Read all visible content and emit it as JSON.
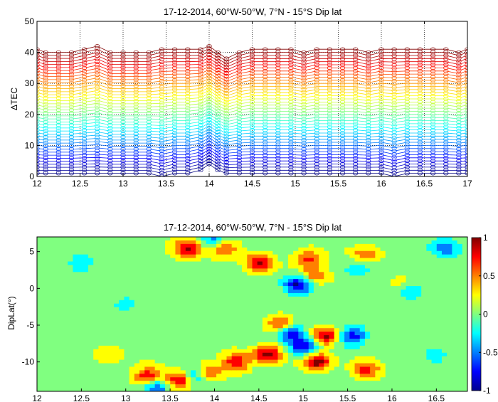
{
  "chart_data": [
    {
      "type": "line",
      "title": "17-12-2014, 60°W-50°W, 7°N - 15°S Dip lat",
      "xlabel": "",
      "ylabel": "ΔTEC",
      "xlim": [
        12,
        17
      ],
      "ylim": [
        0,
        50
      ],
      "xticks": [
        "12",
        "12.5",
        "13",
        "13.5",
        "14",
        "14.5",
        "15",
        "15.5",
        "16",
        "16.5",
        "17"
      ],
      "yticks": [
        "0",
        "10",
        "20",
        "30",
        "40",
        "50"
      ],
      "marker": "open-circle",
      "colormap": "jet",
      "grid": "dotted",
      "n_series": 41,
      "series_offset_step": 1,
      "x": [
        12,
        12.1,
        12.25,
        12.4,
        12.55,
        12.7,
        12.85,
        13,
        13.15,
        13.3,
        13.45,
        13.6,
        13.75,
        13.9,
        14,
        14.1,
        14.2,
        14.35,
        14.5,
        14.65,
        14.8,
        14.95,
        15.1,
        15.25,
        15.4,
        15.55,
        15.7,
        15.85,
        16,
        16.15,
        16.3,
        16.45,
        16.6,
        16.75,
        16.9,
        17
      ],
      "top_series": [
        41,
        40,
        40,
        40,
        41,
        42,
        40,
        40,
        40,
        40,
        41,
        41,
        41,
        41,
        42,
        40,
        38,
        40,
        41,
        41,
        41,
        41,
        40,
        41,
        41,
        41,
        41,
        40,
        41,
        41,
        41,
        41,
        41,
        41,
        40,
        41
      ],
      "bottom_series": [
        1,
        1,
        1,
        1,
        1,
        1,
        1,
        1,
        1,
        1,
        0,
        1,
        1,
        2,
        4,
        2,
        1,
        1,
        1,
        1,
        1,
        1,
        1,
        1,
        1,
        1,
        1,
        1,
        1,
        0,
        1,
        1,
        1,
        1,
        1,
        1
      ]
    },
    {
      "type": "heatmap",
      "title": "17-12-2014, 60°W-50°W, 7°N - 15°S Dip lat",
      "xlabel": "",
      "ylabel": "DipLat(°)",
      "xlim": [
        12,
        16.85
      ],
      "ylim": [
        -14,
        7
      ],
      "xticks": [
        "12",
        "12.5",
        "13",
        "13.5",
        "14",
        "14.5",
        "15",
        "15.5",
        "16",
        "16.5"
      ],
      "yticks": [
        "5",
        "0",
        "-5",
        "-10"
      ],
      "colorbar_ticks": [
        "1",
        "0.5",
        "0",
        "-0.5",
        "-1"
      ],
      "clim": [
        -1,
        1
      ],
      "colormap": "jet",
      "style": "filled-contour",
      "anomalies": [
        {
          "x": 13.6,
          "y": -12.5,
          "value": 1.0
        },
        {
          "x": 13.25,
          "y": -12.0,
          "value": 0.85
        },
        {
          "x": 13.9,
          "y": -11.5,
          "value": 0.85
        },
        {
          "x": 14.25,
          "y": -10.0,
          "value": 0.8
        },
        {
          "x": 14.6,
          "y": -9.0,
          "value": 0.95
        },
        {
          "x": 15.15,
          "y": -10.0,
          "value": 1.0
        },
        {
          "x": 15.25,
          "y": -6.5,
          "value": 0.95
        },
        {
          "x": 14.75,
          "y": -5.0,
          "value": 0.7
        },
        {
          "x": 15.7,
          "y": -11.0,
          "value": 0.65
        },
        {
          "x": 13.7,
          "y": 5.5,
          "value": 0.85
        },
        {
          "x": 14.1,
          "y": 5.5,
          "value": 0.8
        },
        {
          "x": 14.5,
          "y": 3.5,
          "value": 0.8
        },
        {
          "x": 15.05,
          "y": 4.0,
          "value": 0.7
        },
        {
          "x": 15.1,
          "y": 1.5,
          "value": 0.6
        },
        {
          "x": 15.7,
          "y": 4.5,
          "value": 0.5
        },
        {
          "x": 16.15,
          "y": 0.5,
          "value": 0.5
        },
        {
          "x": 14.95,
          "y": 0.5,
          "value": -1.0
        },
        {
          "x": 14.85,
          "y": -6.0,
          "value": -0.9
        },
        {
          "x": 15.0,
          "y": -8.0,
          "value": -0.9
        },
        {
          "x": 15.55,
          "y": -6.5,
          "value": -0.85
        },
        {
          "x": 13.8,
          "y": -11.8,
          "value": -0.85
        },
        {
          "x": 13.35,
          "y": -13.3,
          "value": -0.8
        },
        {
          "x": 14.0,
          "y": 6.5,
          "value": -0.6
        },
        {
          "x": 16.2,
          "y": 0.0,
          "value": -0.7
        },
        {
          "x": 16.6,
          "y": 5.5,
          "value": -0.5
        },
        {
          "x": 12.5,
          "y": 3.5,
          "value": -0.3
        },
        {
          "x": 13.0,
          "y": -2.0,
          "value": -0.3
        },
        {
          "x": 12.8,
          "y": -9.0,
          "value": 0.35
        },
        {
          "x": 15.6,
          "y": 2.5,
          "value": -0.3
        },
        {
          "x": 16.5,
          "y": -9.0,
          "value": -0.3
        }
      ]
    }
  ]
}
